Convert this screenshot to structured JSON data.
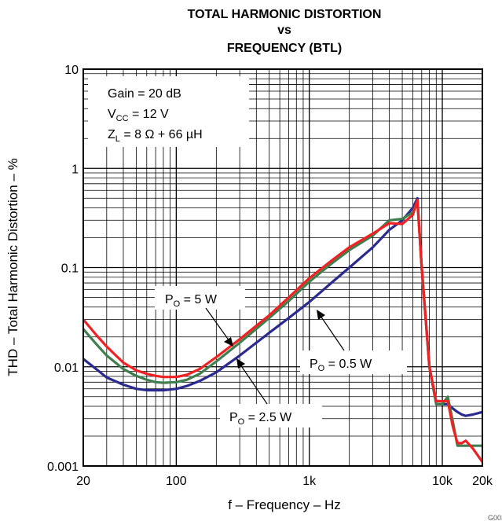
{
  "chart_data": {
    "type": "line",
    "title_lines": [
      "TOTAL HARMONIC DISTORTION",
      "vs",
      "FREQUENCY (BTL)"
    ],
    "xlabel": "f – Frequency – Hz",
    "ylabel": "THD – Total Harmonic Distortion – %",
    "x_scale": "log",
    "y_scale": "log",
    "xlim": [
      20,
      20000
    ],
    "ylim": [
      0.001,
      10
    ],
    "x_ticks": [
      {
        "value": 20,
        "label": "20"
      },
      {
        "value": 100,
        "label": "100"
      },
      {
        "value": 1000,
        "label": "1k"
      },
      {
        "value": 10000,
        "label": "10k"
      },
      {
        "value": 20000,
        "label": "20k"
      }
    ],
    "y_ticks": [
      {
        "value": 0.001,
        "label": "0.001"
      },
      {
        "value": 0.01,
        "label": "0.01"
      },
      {
        "value": 0.1,
        "label": "0.1"
      },
      {
        "value": 1,
        "label": "1"
      },
      {
        "value": 10,
        "label": "10"
      }
    ],
    "grid": true,
    "conditions": {
      "gain": "Gain = 20 dB",
      "vcc_main": "V",
      "vcc_sub": "CC",
      "vcc_rest": " = 12 V",
      "zl_main": "Z",
      "zl_sub": "L",
      "zl_rest": " = 8 Ω + 66 µH"
    },
    "series": [
      {
        "name": "PO = 5 W",
        "label_main": "P",
        "label_sub": "O",
        "label_rest": " = 5 W",
        "color": "#ee2222",
        "x": [
          20,
          25,
          30,
          40,
          50,
          60,
          70,
          80,
          100,
          120,
          150,
          200,
          300,
          500,
          700,
          1000,
          1500,
          2000,
          3000,
          4000,
          5000,
          6000,
          6500,
          7000,
          8000,
          9000,
          10000,
          11000,
          12000,
          13000,
          14000,
          15000,
          17000,
          20000
        ],
        "y": [
          0.03,
          0.021,
          0.016,
          0.011,
          0.0092,
          0.0085,
          0.0081,
          0.0079,
          0.0079,
          0.0083,
          0.0095,
          0.0125,
          0.019,
          0.033,
          0.05,
          0.078,
          0.12,
          0.16,
          0.22,
          0.28,
          0.275,
          0.34,
          0.48,
          0.1,
          0.01,
          0.0045,
          0.0045,
          0.0045,
          0.0025,
          0.0017,
          0.0017,
          0.0018,
          0.0015,
          0.0011
        ]
      },
      {
        "name": "PO = 2.5 W",
        "label_main": "P",
        "label_sub": "O",
        "label_rest": " = 2.5 W",
        "color": "#3f7f4f",
        "x": [
          20,
          25,
          30,
          40,
          50,
          60,
          70,
          80,
          100,
          120,
          150,
          200,
          300,
          500,
          700,
          1000,
          1500,
          2000,
          3000,
          4000,
          5000,
          6000,
          6500,
          7000,
          8000,
          9000,
          10000,
          11000,
          12000,
          13000,
          14000,
          15000,
          17000,
          20000
        ],
        "y": [
          0.024,
          0.017,
          0.013,
          0.0095,
          0.0081,
          0.0074,
          0.007,
          0.0069,
          0.007,
          0.0074,
          0.0085,
          0.0113,
          0.0175,
          0.031,
          0.046,
          0.072,
          0.112,
          0.15,
          0.21,
          0.3,
          0.31,
          0.36,
          0.47,
          0.1,
          0.01,
          0.0042,
          0.0042,
          0.005,
          0.0028,
          0.0016,
          0.0016,
          0.0016,
          0.0016,
          0.0016
        ]
      },
      {
        "name": "PO = 0.5 W",
        "label_main": "P",
        "label_sub": "O",
        "label_rest": " = 0.5 W",
        "color": "#2a2a8f",
        "x": [
          20,
          25,
          30,
          40,
          50,
          60,
          70,
          80,
          100,
          120,
          150,
          200,
          300,
          500,
          700,
          1000,
          1500,
          2000,
          3000,
          4000,
          5000,
          6000,
          6500,
          7000,
          8000,
          9000,
          10000,
          11000,
          12000,
          13000,
          14000,
          15000,
          17000,
          20000
        ],
        "y": [
          0.012,
          0.0095,
          0.0078,
          0.0066,
          0.006,
          0.0058,
          0.0058,
          0.0058,
          0.006,
          0.0064,
          0.0072,
          0.0088,
          0.013,
          0.022,
          0.031,
          0.045,
          0.072,
          0.1,
          0.16,
          0.24,
          0.3,
          0.4,
          0.5,
          0.1,
          0.01,
          0.0042,
          0.0042,
          0.0042,
          0.0038,
          0.0035,
          0.0033,
          0.0032,
          0.0033,
          0.0035
        ]
      }
    ],
    "page_code": "G003"
  }
}
